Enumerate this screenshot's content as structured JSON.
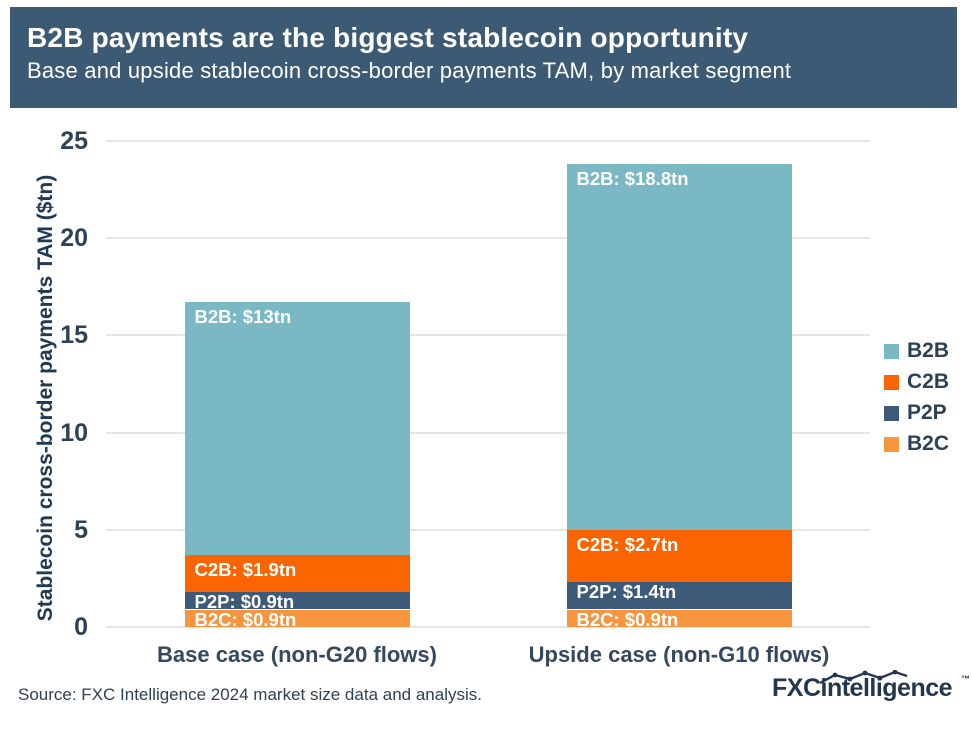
{
  "header": {
    "title": "B2B payments are the biggest stablecoin opportunity",
    "subtitle": "Base and upside stablecoin cross-border payments TAM, by market segment"
  },
  "chart_data": {
    "type": "bar",
    "stacked": true,
    "title": "B2B payments are the biggest stablecoin opportunity",
    "categories": [
      "Base case (non-G20 flows)",
      "Upside case (non-G10 flows)"
    ],
    "series": [
      {
        "name": "B2C",
        "color": "#f6953e",
        "values": [
          0.9,
          0.9
        ],
        "labels": [
          "B2C: $0.9tn",
          "B2C: $0.9tn"
        ]
      },
      {
        "name": "P2P",
        "color": "#3d5a78",
        "values": [
          0.9,
          1.4
        ],
        "labels": [
          "P2P: $0.9tn",
          "P2P: $1.4tn"
        ]
      },
      {
        "name": "C2B",
        "color": "#fa6502",
        "values": [
          1.9,
          2.7
        ],
        "labels": [
          "C2B: $1.9tn",
          "C2B: $2.7tn"
        ]
      },
      {
        "name": "B2B",
        "color": "#7ab9c4",
        "values": [
          13,
          18.8
        ],
        "labels": [
          "B2B: $13tn",
          "B2B: $18.8tn"
        ]
      }
    ],
    "totals": [
      16.7,
      23.8
    ],
    "xlabel": "",
    "ylabel": "Stablecoin cross-border payments TAM ($tn)",
    "yticks": [
      0,
      5,
      10,
      15,
      20,
      25
    ],
    "ylim": [
      0,
      25
    ],
    "grid": true,
    "legend_position": "right",
    "legend": [
      {
        "label": "B2B",
        "color": "#7ab9c4"
      },
      {
        "label": "C2B",
        "color": "#fa6502"
      },
      {
        "label": "P2P",
        "color": "#3d5a78"
      },
      {
        "label": "B2C",
        "color": "#f6953e"
      }
    ],
    "colors": {
      "header_background": "#3d5a74",
      "axis_text": "#2e4256",
      "gridline": "#e5e5e5",
      "bar_label_text": "#ffffff"
    }
  },
  "footer": {
    "source": "Source: FXC Intelligence 2024 market size data and analysis.",
    "logo": "FXCintelligence",
    "logo_tm": "™"
  }
}
